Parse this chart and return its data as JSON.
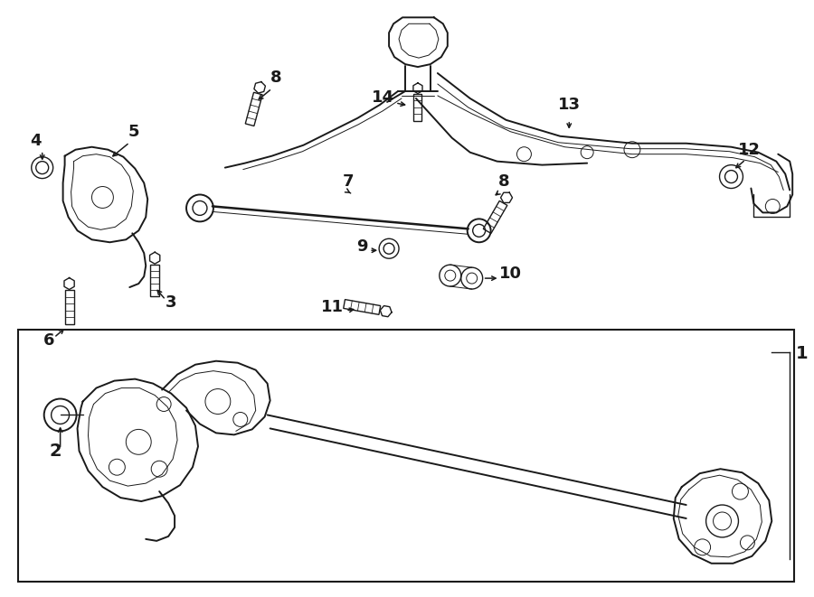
{
  "bg_color": "#ffffff",
  "line_color": "#1a1a1a",
  "fig_width": 9.0,
  "fig_height": 6.61,
  "dpi": 100,
  "lw_heavy": 1.4,
  "lw_med": 1.0,
  "lw_thin": 0.7,
  "label_fs": 13,
  "arrow_fs": 10
}
